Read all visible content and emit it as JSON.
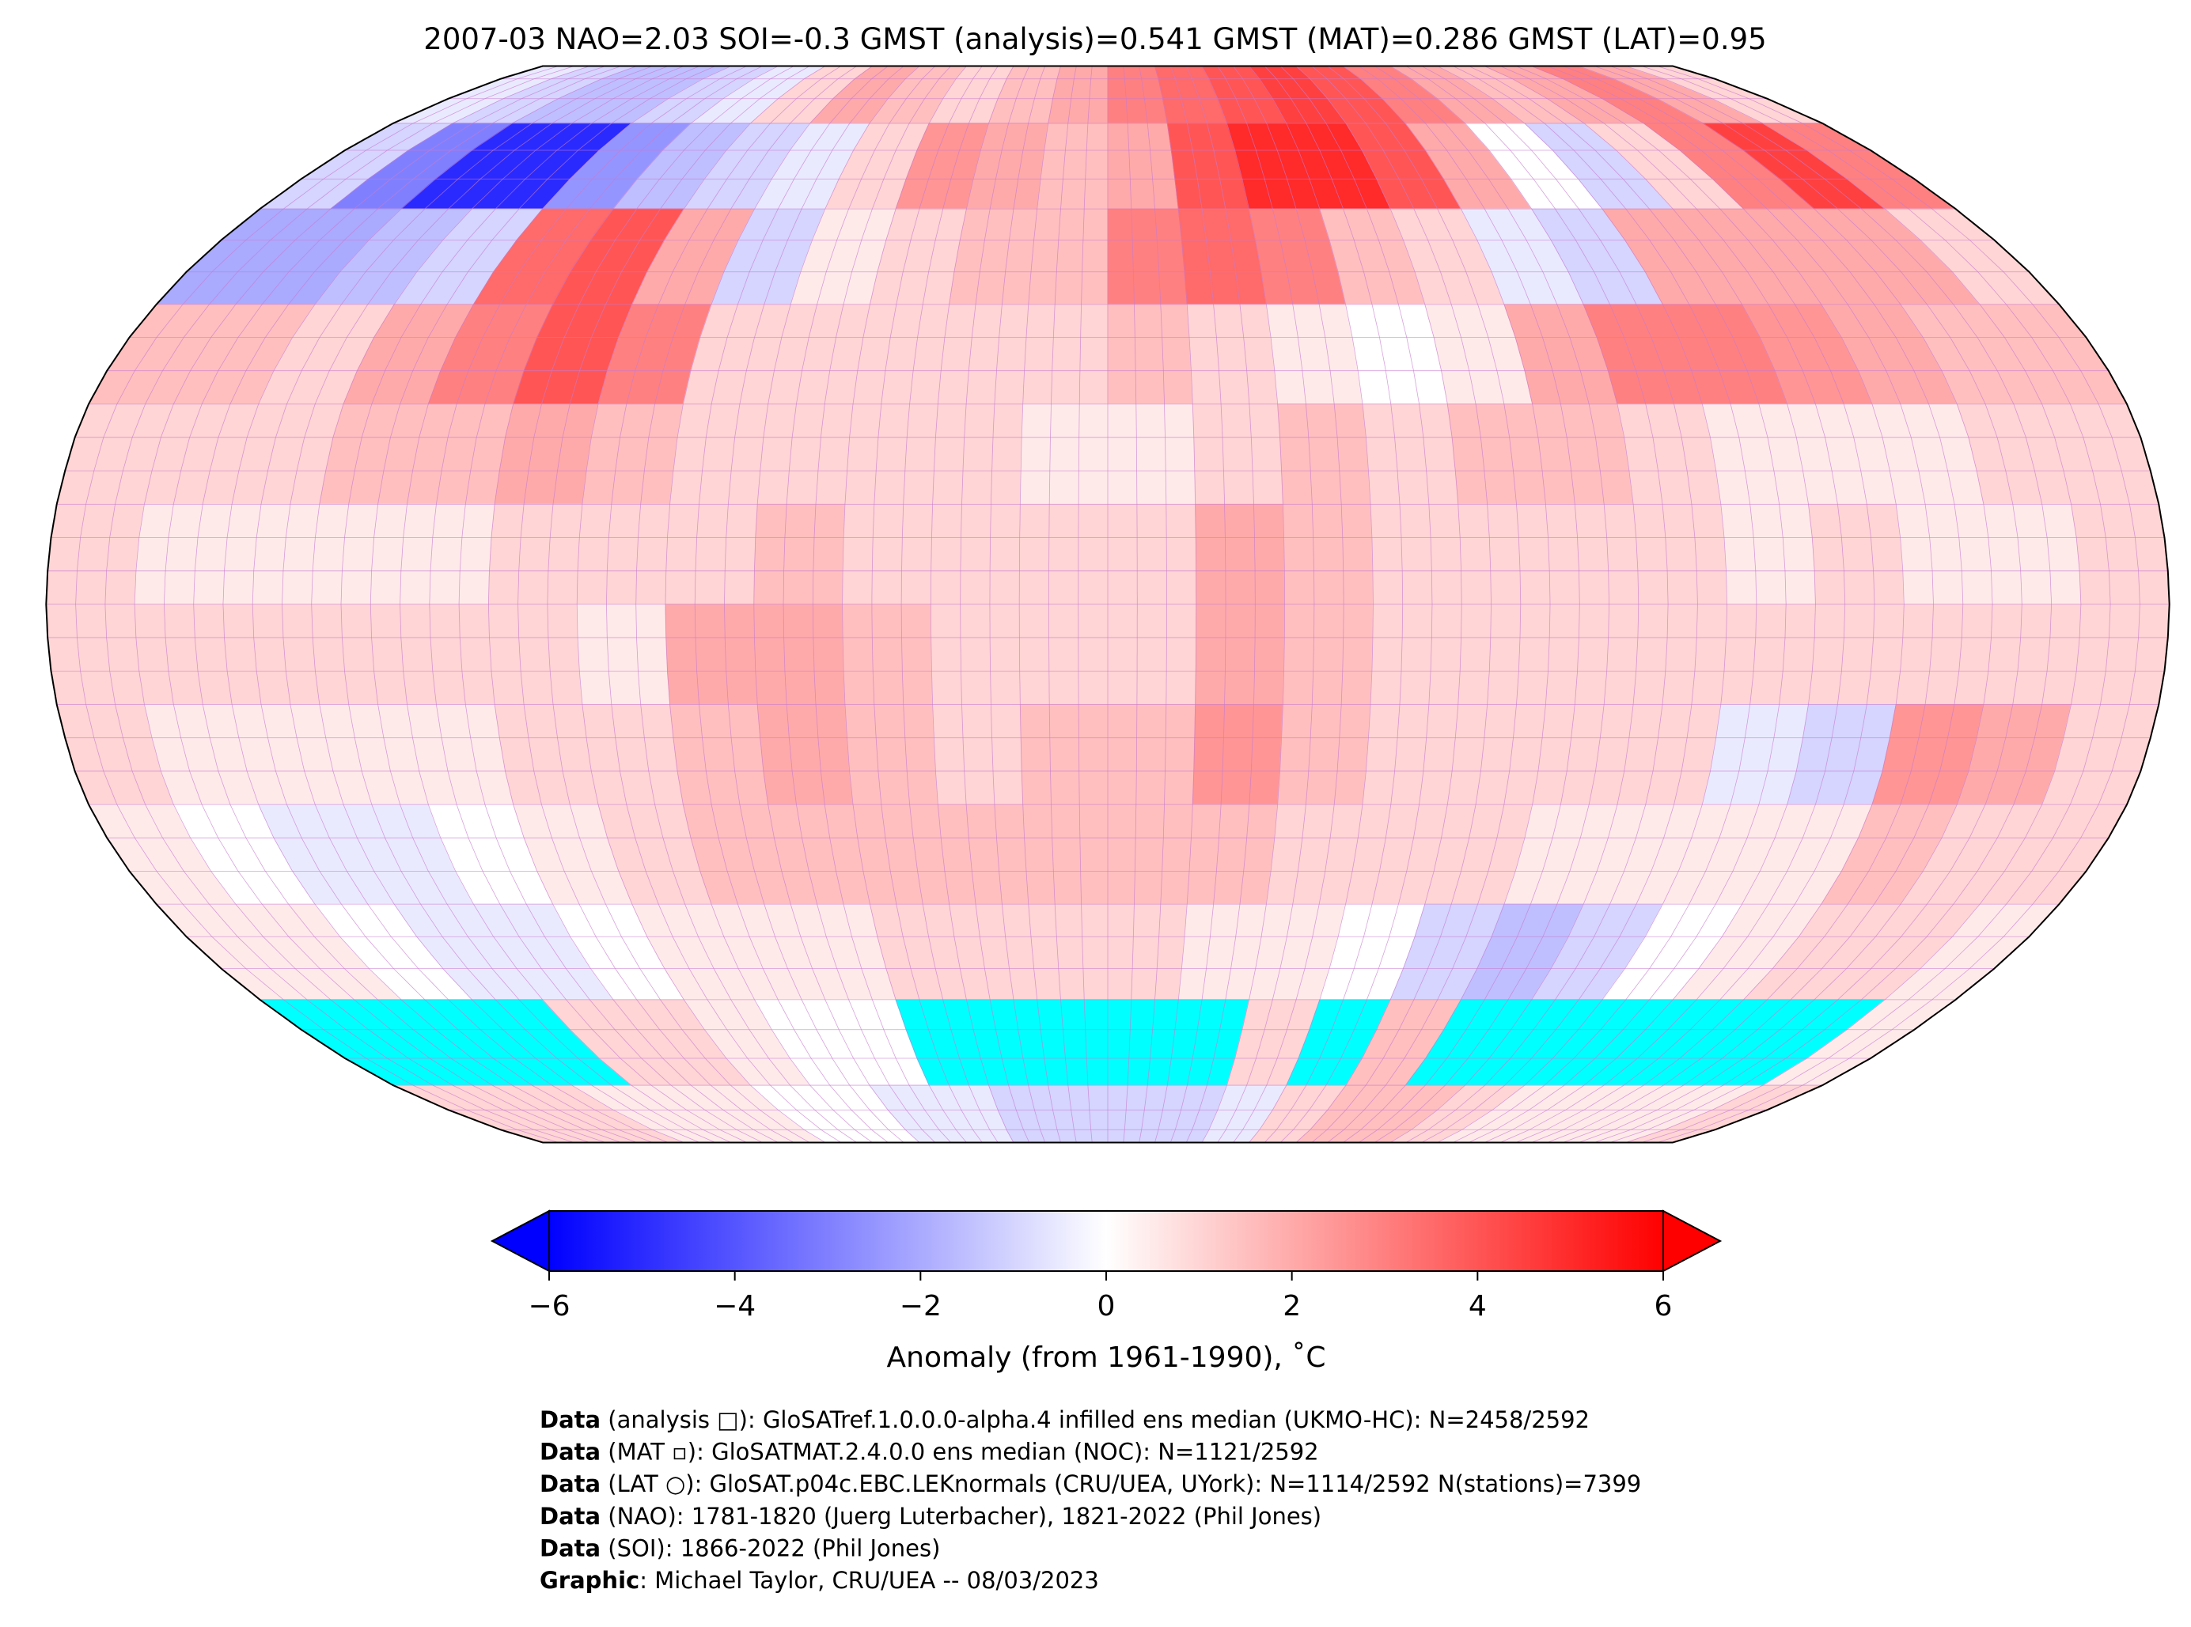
{
  "chart_data": {
    "type": "heatmap",
    "title": "2007-03 NAO=2.03 SOI=-0.3 GMST (analysis)=0.541 GMST (MAT)=0.286 GMST (LAT)=0.95",
    "projection": "Robinson",
    "grid": true,
    "colormap": {
      "name": "bwr",
      "min": -6,
      "max": 6,
      "low_color": "#0000ff",
      "mid_color": "#ffffff",
      "high_color": "#ff0000",
      "missing_color": "#00ffff",
      "extend": "both"
    },
    "colorbar": {
      "label": "Anomaly (from 1961-1990), ˚C",
      "ticks": [
        "−6",
        "−4",
        "−2",
        "0",
        "2",
        "4",
        "6"
      ],
      "tick_values": [
        -6,
        -4,
        -2,
        0,
        2,
        4,
        6
      ],
      "placement": "bottom"
    },
    "lon_edges": [
      -180,
      180
    ],
    "lat_edges": [
      90,
      -90
    ],
    "cell_deg": 15,
    "anomaly_rows": [
      [
        -0.5,
        -1,
        -1.5,
        -1.5,
        -1,
        -0.5,
        1,
        2,
        1.5,
        1,
        1.5,
        2,
        3,
        3.5,
        4,
        4.5,
        4,
        3,
        2,
        1.5,
        2,
        3,
        2,
        1
      ],
      [
        -1,
        -3,
        -5,
        -5,
        -2.5,
        -1.5,
        -1,
        -0.5,
        1,
        2.5,
        2,
        1.5,
        2,
        4,
        5,
        5,
        4,
        2,
        0,
        -1,
        1,
        3,
        4.5,
        3
      ],
      [
        -2,
        -2,
        -1.5,
        -1,
        3.5,
        4,
        2,
        -1,
        0.5,
        1,
        1.5,
        1.5,
        3,
        3.5,
        3,
        1.5,
        1,
        -0.5,
        -1,
        2,
        2,
        2,
        2,
        1
      ],
      [
        1.5,
        1.5,
        1,
        2,
        3,
        4,
        3,
        1,
        1,
        1,
        1,
        1,
        1.5,
        1,
        0.5,
        0,
        0.5,
        2,
        3,
        3,
        2.5,
        2,
        1.5,
        1.5
      ],
      [
        1,
        1,
        1,
        1.5,
        1.5,
        2,
        1.5,
        1,
        1,
        1,
        1,
        0.5,
        0.5,
        1,
        1.5,
        1,
        1.5,
        1.5,
        1,
        0.5,
        0.5,
        0.5,
        1,
        1
      ],
      [
        1,
        0.5,
        0.5,
        0.5,
        0.5,
        1,
        1,
        1,
        1.5,
        1,
        1,
        1,
        1,
        2,
        1.5,
        1,
        1,
        1,
        1,
        0.5,
        1,
        0.5,
        0.5,
        1
      ],
      [
        1,
        1,
        1,
        1,
        1,
        1,
        0.5,
        2,
        2,
        1.5,
        1,
        1,
        1,
        2,
        1.5,
        1,
        1,
        1,
        1,
        1,
        1,
        1,
        1,
        1
      ],
      [
        1,
        0.5,
        0.5,
        0.5,
        0.5,
        1,
        1,
        1.5,
        2,
        1.5,
        1,
        1.5,
        1.5,
        2.5,
        1.5,
        1,
        1,
        1,
        1,
        -0.5,
        -1,
        2.5,
        2,
        1
      ],
      [
        0.5,
        0,
        -0.5,
        -0.5,
        0,
        0.5,
        1,
        1.5,
        1.5,
        1.5,
        1.5,
        1.5,
        1.5,
        1.5,
        1,
        1,
        1,
        0.5,
        0.5,
        0.5,
        0.5,
        1.5,
        1,
        1
      ],
      [
        0.5,
        0.5,
        0,
        -0.5,
        -0.5,
        0,
        0.5,
        0.5,
        0.5,
        1,
        1,
        1,
        1,
        0.5,
        0.5,
        0,
        -1,
        -1.5,
        -1,
        0,
        0.5,
        1,
        1,
        0.5
      ],
      [
        null,
        null,
        null,
        null,
        1,
        1,
        0.5,
        0,
        0,
        null,
        null,
        null,
        null,
        null,
        1,
        null,
        1.5,
        null,
        null,
        null,
        null,
        null,
        null,
        0.5
      ],
      [
        1,
        1,
        1,
        0.5,
        0.5,
        0.5,
        0,
        0,
        -0.5,
        -0.5,
        -1,
        -1,
        -1,
        -1,
        -0.5,
        1,
        1.5,
        1.5,
        1,
        0.5,
        0.5,
        0.5,
        0.5,
        1
      ]
    ]
  },
  "footer": [
    {
      "bold": "Data",
      "text": " (analysis □): GloSATref.1.0.0.0-alpha.4 infilled ens median (UKMO-HC): N=2458/2592"
    },
    {
      "bold": "Data",
      "text": " (MAT ▫): GloSATMAT.2.4.0.0 ens median (NOC): N=1121/2592"
    },
    {
      "bold": "Data",
      "text": " (LAT ○): GloSAT.p04c.EBC.LEKnormals (CRU/UEA, UYork): N=1114/2592 N(stations)=7399"
    },
    {
      "bold": "Data",
      "text": " (NAO): 1781-1820 (Juerg Luterbacher), 1821-2022 (Phil Jones)"
    },
    {
      "bold": "Data",
      "text": " (SOI): 1866-2022 (Phil Jones)"
    },
    {
      "bold": "Graphic",
      "text": ": Michael Taylor, CRU/UEA -- 08/03/2023"
    }
  ]
}
